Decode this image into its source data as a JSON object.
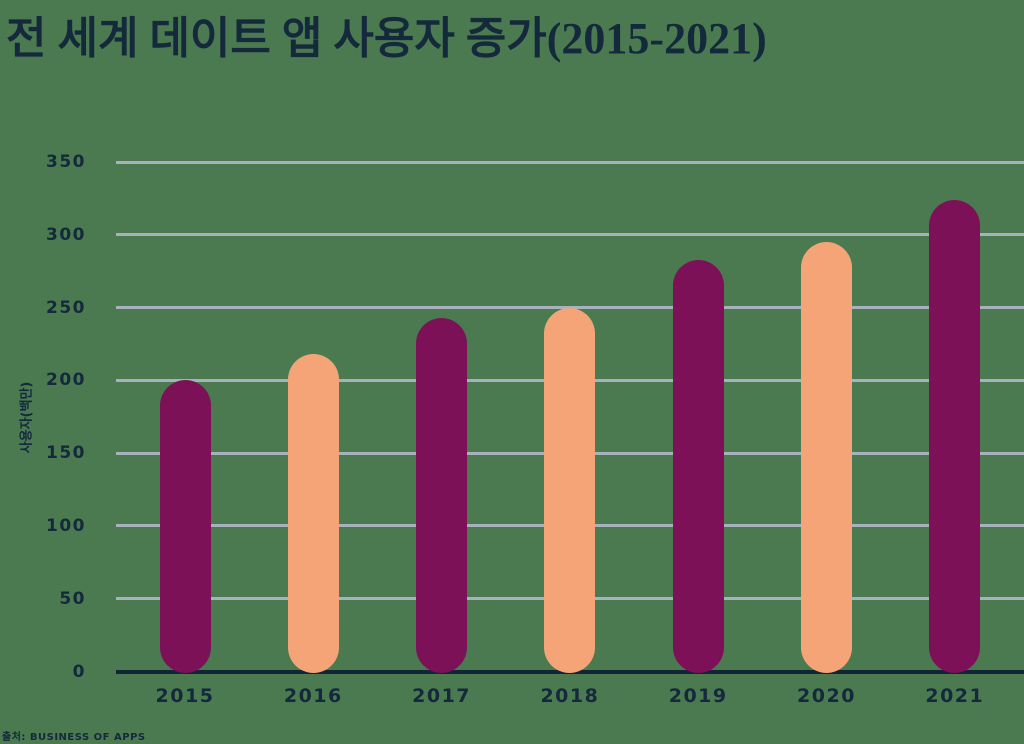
{
  "chart_data": {
    "type": "bar",
    "title": "전 세계 데이트 앱 사용자 증가(2015-2021)",
    "ylabel": "사용자(백만)",
    "source": "출처: BUSINESS OF APPS",
    "categories": [
      "2015",
      "2016",
      "2017",
      "2018",
      "2019",
      "2020",
      "2021"
    ],
    "values": [
      200,
      218,
      243,
      250,
      283,
      295,
      324
    ],
    "bar_colors": [
      "#7d1157",
      "#f5a478",
      "#7d1157",
      "#f5a478",
      "#7d1157",
      "#f5a478",
      "#7d1157"
    ],
    "ylim": [
      0,
      350
    ],
    "yticks": [
      0,
      50,
      100,
      150,
      200,
      250,
      300,
      350
    ],
    "grid": true,
    "legend": false,
    "colors": {
      "background": "#4b7a50",
      "title_text": "#14293c",
      "axis_text": "#14293c",
      "axis_line": "#102636",
      "gridline": "#a7b2bc",
      "bar_primary": "#7d1157",
      "bar_secondary": "#f5a478"
    }
  }
}
